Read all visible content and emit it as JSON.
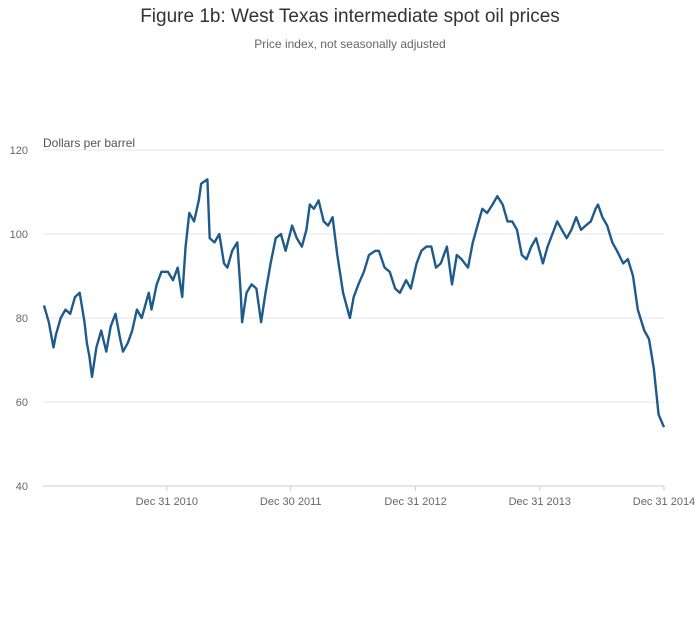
{
  "chart_data": {
    "type": "line",
    "title": "Figure 1b: West Texas intermediate spot oil prices",
    "subtitle": "Price index, not seasonally adjusted",
    "ylabel": "Dollars per barrel",
    "xlabel": "",
    "ylim": [
      40,
      120
    ],
    "yticks": [
      40,
      60,
      80,
      100,
      120
    ],
    "xlim": [
      "2010-01-01",
      "2014-12-31"
    ],
    "xticks": [
      {
        "date": "2010-12-31",
        "label": "Dec 31 2010"
      },
      {
        "date": "2011-12-30",
        "label": "Dec 30 2011"
      },
      {
        "date": "2012-12-31",
        "label": "Dec 31 2012"
      },
      {
        "date": "2013-12-31",
        "label": "Dec 31 2013"
      },
      {
        "date": "2014-12-31",
        "label": "Dec 31 2014"
      }
    ],
    "grid": true,
    "line_color": "#1f5a8c",
    "series": [
      {
        "x": [
          "2010-01-04",
          "2010-01-18",
          "2010-02-01",
          "2010-02-08",
          "2010-02-22",
          "2010-03-08",
          "2010-03-22",
          "2010-04-05",
          "2010-04-19",
          "2010-05-03",
          "2010-05-10",
          "2010-05-17",
          "2010-05-25",
          "2010-06-07",
          "2010-06-21",
          "2010-07-06",
          "2010-07-19",
          "2010-08-02",
          "2010-08-16",
          "2010-08-24",
          "2010-09-07",
          "2010-09-20",
          "2010-10-04",
          "2010-10-18",
          "2010-11-01",
          "2010-11-08",
          "2010-11-16",
          "2010-12-01",
          "2010-12-15",
          "2011-01-03",
          "2011-01-18",
          "2011-02-01",
          "2011-02-14",
          "2011-02-24",
          "2011-03-07",
          "2011-03-21",
          "2011-04-04",
          "2011-04-11",
          "2011-04-29",
          "2011-05-06",
          "2011-05-20",
          "2011-06-03",
          "2011-06-17",
          "2011-06-27",
          "2011-07-11",
          "2011-07-26",
          "2011-08-05",
          "2011-08-09",
          "2011-08-22",
          "2011-09-06",
          "2011-09-20",
          "2011-10-04",
          "2011-10-17",
          "2011-11-01",
          "2011-11-16",
          "2011-12-01",
          "2011-12-15",
          "2012-01-03",
          "2012-01-17",
          "2012-02-01",
          "2012-02-14",
          "2012-02-24",
          "2012-03-07",
          "2012-03-21",
          "2012-04-05",
          "2012-04-18",
          "2012-05-01",
          "2012-05-15",
          "2012-06-01",
          "2012-06-21",
          "2012-07-02",
          "2012-07-16",
          "2012-08-01",
          "2012-08-16",
          "2012-09-04",
          "2012-09-14",
          "2012-10-01",
          "2012-10-16",
          "2012-11-01",
          "2012-11-15",
          "2012-12-03",
          "2012-12-17",
          "2013-01-03",
          "2013-01-17",
          "2013-02-01",
          "2013-02-15",
          "2013-03-01",
          "2013-03-15",
          "2013-04-02",
          "2013-04-17",
          "2013-05-01",
          "2013-05-15",
          "2013-06-03",
          "2013-06-17",
          "2013-07-01",
          "2013-07-15",
          "2013-07-29",
          "2013-08-14",
          "2013-08-28",
          "2013-09-13",
          "2013-09-27",
          "2013-10-11",
          "2013-10-25",
          "2013-11-08",
          "2013-11-22",
          "2013-12-06",
          "2013-12-20",
          "2014-01-09",
          "2014-01-23",
          "2014-02-06",
          "2014-02-20",
          "2014-03-06",
          "2014-03-20",
          "2014-04-03",
          "2014-04-17",
          "2014-05-01",
          "2014-05-15",
          "2014-05-30",
          "2014-06-13",
          "2014-06-20",
          "2014-07-03",
          "2014-07-17",
          "2014-08-01",
          "2014-08-15",
          "2014-09-02",
          "2014-09-16",
          "2014-10-01",
          "2014-10-15",
          "2014-11-03",
          "2014-11-17",
          "2014-12-01",
          "2014-12-15",
          "2014-12-31"
        ],
        "y": [
          83,
          79,
          73,
          76,
          80,
          82,
          81,
          85,
          86,
          79,
          74,
          71,
          66,
          73,
          77,
          72,
          78,
          81,
          75,
          72,
          74,
          77,
          82,
          80,
          84,
          86,
          82,
          88,
          91,
          91,
          89,
          92,
          85,
          97,
          105,
          103,
          108,
          112,
          113,
          99,
          98,
          100,
          93,
          92,
          96,
          98,
          86,
          79,
          86,
          88,
          87,
          79,
          86,
          93,
          99,
          100,
          96,
          102,
          99,
          97,
          101,
          107,
          106,
          108,
          103,
          102,
          104,
          95,
          86,
          80,
          85,
          88,
          91,
          95,
          96,
          96,
          92,
          91,
          87,
          86,
          89,
          87,
          93,
          96,
          97,
          97,
          92,
          93,
          97,
          88,
          95,
          94,
          92,
          98,
          102,
          106,
          105,
          107,
          109,
          107,
          103,
          103,
          101,
          95,
          94,
          97,
          99,
          93,
          97,
          100,
          103,
          101,
          99,
          101,
          104,
          101,
          102,
          103,
          106,
          107,
          104,
          102,
          98,
          96,
          93,
          94,
          90,
          82,
          77,
          75,
          68,
          57,
          54
        ]
      }
    ]
  }
}
